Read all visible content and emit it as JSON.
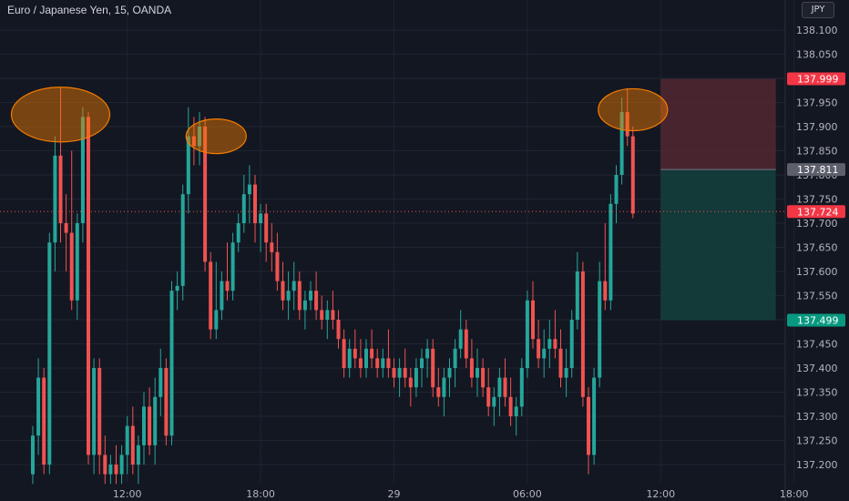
{
  "header": {
    "title": "Euro / Japanese Yen, 15, OANDA"
  },
  "currency_button": "JPY",
  "colors": {
    "background": "#131722",
    "up": "#26a69a",
    "down": "#ef5350",
    "grid": "#1f2431",
    "axis_text": "#b2b5be",
    "annotation": "#f57c00",
    "stop_zone": "#5a2a33",
    "target_zone": "#14403c"
  },
  "chart_data": {
    "type": "candlestick",
    "symbol": "Euro / Japanese Yen",
    "timeframe": "15",
    "source": "OANDA",
    "y_range": [
      137.16,
      138.17
    ],
    "y_ticks": [
      "138.100",
      "138.050",
      "138.000",
      "137.950",
      "137.900",
      "137.850",
      "137.800",
      "137.750",
      "137.700",
      "137.650",
      "137.600",
      "137.550",
      "137.500",
      "137.450",
      "137.400",
      "137.350",
      "137.300",
      "137.250",
      "137.200"
    ],
    "x_ticks": [
      {
        "label": "12:00",
        "index": 17
      },
      {
        "label": "18:00",
        "index": 41
      },
      {
        "label": "29",
        "index": 65
      },
      {
        "label": "06:00",
        "index": 89
      },
      {
        "label": "12:00",
        "index": 113
      },
      {
        "label": "18:00",
        "index": 137
      }
    ],
    "candles": [
      [
        137.18,
        137.28,
        137.16,
        137.26
      ],
      [
        137.26,
        137.42,
        137.22,
        137.38
      ],
      [
        137.38,
        137.4,
        137.18,
        137.2
      ],
      [
        137.2,
        137.68,
        137.18,
        137.66
      ],
      [
        137.66,
        137.88,
        137.6,
        137.84
      ],
      [
        137.84,
        137.98,
        137.66,
        137.7
      ],
      [
        137.7,
        137.76,
        137.6,
        137.68
      ],
      [
        137.68,
        137.85,
        137.52,
        137.54
      ],
      [
        137.54,
        137.72,
        137.5,
        137.7
      ],
      [
        137.7,
        137.94,
        137.66,
        137.92
      ],
      [
        137.92,
        137.93,
        137.2,
        137.22
      ],
      [
        137.22,
        137.42,
        137.18,
        137.4
      ],
      [
        137.4,
        137.42,
        137.18,
        137.22
      ],
      [
        137.22,
        137.26,
        137.16,
        137.18
      ],
      [
        137.18,
        137.22,
        137.16,
        137.2
      ],
      [
        137.2,
        137.24,
        137.16,
        137.18
      ],
      [
        137.18,
        137.24,
        137.16,
        137.22
      ],
      [
        137.22,
        137.3,
        137.18,
        137.28
      ],
      [
        137.28,
        137.32,
        137.18,
        137.2
      ],
      [
        137.2,
        137.26,
        137.16,
        137.24
      ],
      [
        137.24,
        137.35,
        137.2,
        137.32
      ],
      [
        137.32,
        137.36,
        137.22,
        137.24
      ],
      [
        137.24,
        137.38,
        137.2,
        137.34
      ],
      [
        137.34,
        137.44,
        137.3,
        137.4
      ],
      [
        137.4,
        137.42,
        137.24,
        137.26
      ],
      [
        137.26,
        137.58,
        137.24,
        137.56
      ],
      [
        137.56,
        137.6,
        137.52,
        137.57
      ],
      [
        137.57,
        137.78,
        137.54,
        137.76
      ],
      [
        137.76,
        137.94,
        137.72,
        137.88
      ],
      [
        137.88,
        137.92,
        137.82,
        137.86
      ],
      [
        137.86,
        137.93,
        137.82,
        137.9
      ],
      [
        137.9,
        137.92,
        137.6,
        137.62
      ],
      [
        137.62,
        137.64,
        137.46,
        137.48
      ],
      [
        137.48,
        137.62,
        137.46,
        137.52
      ],
      [
        137.52,
        137.6,
        137.5,
        137.58
      ],
      [
        137.58,
        137.66,
        137.54,
        137.56
      ],
      [
        137.56,
        137.68,
        137.54,
        137.66
      ],
      [
        137.66,
        137.72,
        137.64,
        137.7
      ],
      [
        137.7,
        137.8,
        137.68,
        137.76
      ],
      [
        137.76,
        137.82,
        137.7,
        137.78
      ],
      [
        137.78,
        137.8,
        137.66,
        137.7
      ],
      [
        137.7,
        137.74,
        137.64,
        137.72
      ],
      [
        137.72,
        137.74,
        137.62,
        137.66
      ],
      [
        137.66,
        137.7,
        137.6,
        137.64
      ],
      [
        137.64,
        137.68,
        137.56,
        137.58
      ],
      [
        137.58,
        137.62,
        137.52,
        137.54
      ],
      [
        137.54,
        137.6,
        137.5,
        137.56
      ],
      [
        137.56,
        137.62,
        137.52,
        137.58
      ],
      [
        137.58,
        137.6,
        137.5,
        137.52
      ],
      [
        137.52,
        137.56,
        137.48,
        137.54
      ],
      [
        137.54,
        137.58,
        137.52,
        137.56
      ],
      [
        137.56,
        137.6,
        137.5,
        137.52
      ],
      [
        137.52,
        137.55,
        137.48,
        137.5
      ],
      [
        137.5,
        137.54,
        137.46,
        137.52
      ],
      [
        137.52,
        137.56,
        137.48,
        137.5
      ],
      [
        137.5,
        137.52,
        137.44,
        137.46
      ],
      [
        137.46,
        137.48,
        137.38,
        137.4
      ],
      [
        137.4,
        137.46,
        137.38,
        137.44
      ],
      [
        137.44,
        137.48,
        137.4,
        137.42
      ],
      [
        137.42,
        137.46,
        137.38,
        137.4
      ],
      [
        137.4,
        137.46,
        137.38,
        137.44
      ],
      [
        137.44,
        137.48,
        137.4,
        137.42
      ],
      [
        137.42,
        137.44,
        137.38,
        137.4
      ],
      [
        137.4,
        137.44,
        137.38,
        137.42
      ],
      [
        137.42,
        137.48,
        137.38,
        137.4
      ],
      [
        137.4,
        137.42,
        137.36,
        137.38
      ],
      [
        137.38,
        137.42,
        137.34,
        137.4
      ],
      [
        137.4,
        137.44,
        137.36,
        137.38
      ],
      [
        137.38,
        137.4,
        137.32,
        137.36
      ],
      [
        137.36,
        137.42,
        137.34,
        137.4
      ],
      [
        137.4,
        137.44,
        137.36,
        137.42
      ],
      [
        137.42,
        137.46,
        137.38,
        137.44
      ],
      [
        137.44,
        137.46,
        137.34,
        137.36
      ],
      [
        137.36,
        137.4,
        137.32,
        137.34
      ],
      [
        137.34,
        137.4,
        137.3,
        137.38
      ],
      [
        137.38,
        137.42,
        137.34,
        137.4
      ],
      [
        137.4,
        137.46,
        137.36,
        137.44
      ],
      [
        137.44,
        137.52,
        137.42,
        137.48
      ],
      [
        137.48,
        137.5,
        137.4,
        137.42
      ],
      [
        137.42,
        137.46,
        137.36,
        137.38
      ],
      [
        137.38,
        137.44,
        137.34,
        137.4
      ],
      [
        137.4,
        137.42,
        137.34,
        137.36
      ],
      [
        137.36,
        137.4,
        137.3,
        137.32
      ],
      [
        137.32,
        137.36,
        137.28,
        137.34
      ],
      [
        137.34,
        137.4,
        137.3,
        137.38
      ],
      [
        137.38,
        137.42,
        137.32,
        137.34
      ],
      [
        137.34,
        137.38,
        137.28,
        137.3
      ],
      [
        137.3,
        137.34,
        137.26,
        137.32
      ],
      [
        137.32,
        137.42,
        137.3,
        137.4
      ],
      [
        137.4,
        137.56,
        137.38,
        137.54
      ],
      [
        137.54,
        137.58,
        137.44,
        137.46
      ],
      [
        137.46,
        137.5,
        137.4,
        137.42
      ],
      [
        137.42,
        137.48,
        137.38,
        137.44
      ],
      [
        137.44,
        137.5,
        137.4,
        137.46
      ],
      [
        137.46,
        137.52,
        137.42,
        137.44
      ],
      [
        137.44,
        137.48,
        137.36,
        137.38
      ],
      [
        137.38,
        137.44,
        137.34,
        137.4
      ],
      [
        137.4,
        137.52,
        137.38,
        137.5
      ],
      [
        137.5,
        137.64,
        137.48,
        137.6
      ],
      [
        137.6,
        137.62,
        137.32,
        137.34
      ],
      [
        137.34,
        137.36,
        137.18,
        137.22
      ],
      [
        137.22,
        137.4,
        137.2,
        137.38
      ],
      [
        137.38,
        137.62,
        137.36,
        137.58
      ],
      [
        137.58,
        137.7,
        137.52,
        137.54
      ],
      [
        137.54,
        137.76,
        137.52,
        137.74
      ],
      [
        137.74,
        137.82,
        137.7,
        137.8
      ],
      [
        137.8,
        137.96,
        137.78,
        137.93
      ],
      [
        137.93,
        137.98,
        137.86,
        137.88
      ],
      [
        137.88,
        137.9,
        137.71,
        137.72
      ]
    ],
    "price_labels": [
      {
        "value": "137.999",
        "kind": "stop"
      },
      {
        "value": "137.811",
        "kind": "entry"
      },
      {
        "value": "137.724",
        "kind": "last"
      },
      {
        "value": "137.499",
        "kind": "target"
      }
    ],
    "position": {
      "entry": 137.811,
      "stop": 137.999,
      "target": 137.499,
      "start_index": 113,
      "end_index": 137
    },
    "last_price": 137.724,
    "annotations": [
      {
        "type": "ellipse",
        "center_index": 5,
        "center_price": 137.925
      },
      {
        "type": "ellipse",
        "center_index": 33,
        "center_price": 137.88
      },
      {
        "type": "ellipse",
        "center_index": 108,
        "center_price": 137.935
      }
    ]
  }
}
